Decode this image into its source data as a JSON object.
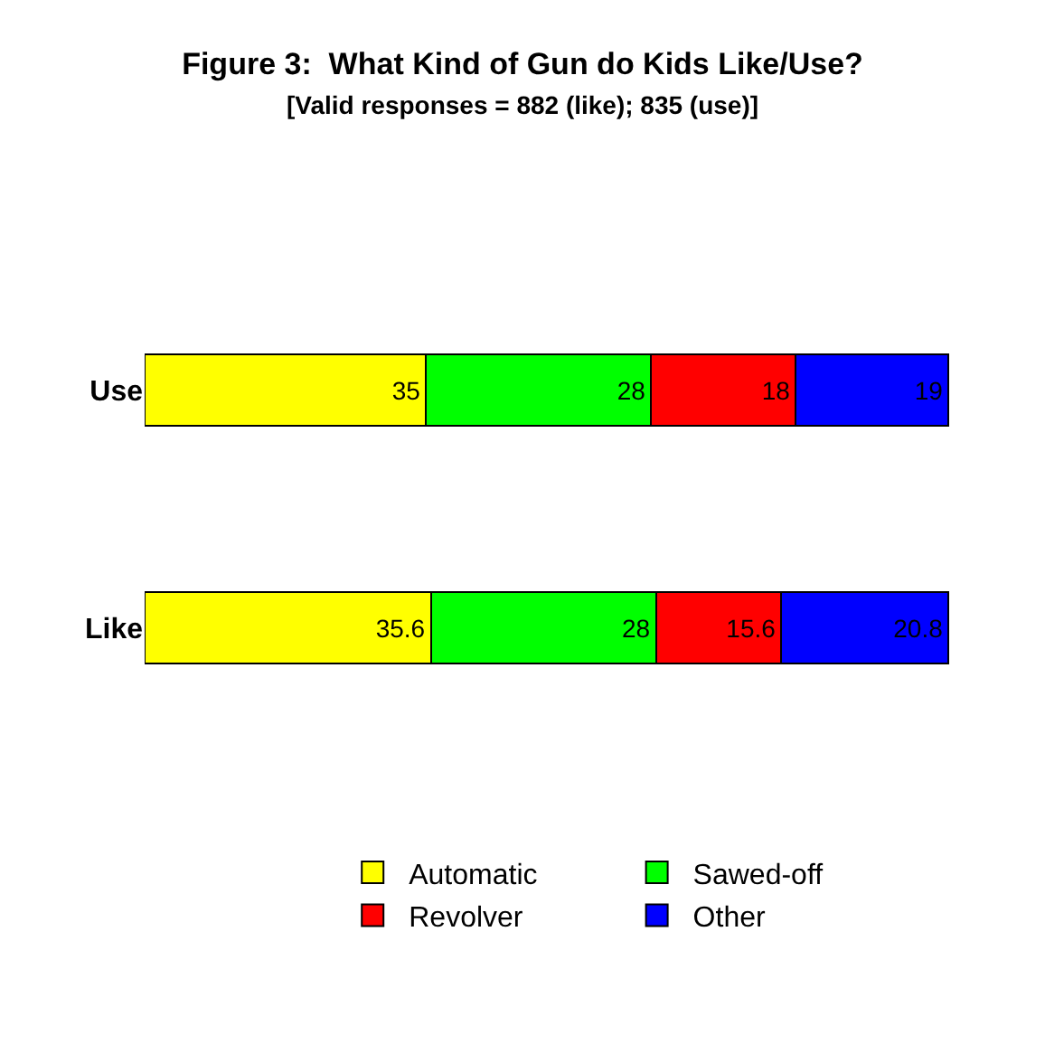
{
  "chart_data": {
    "type": "bar",
    "title": "Figure 3:  What Kind of Gun do Kids Like/Use?",
    "subtitle": "[Valid responses = 882 (like); 835 (use)]",
    "orientation": "horizontal",
    "stacked": true,
    "data_labels": true,
    "legend": "bottom",
    "categories": [
      "Use",
      "Like"
    ],
    "series": [
      {
        "name": "Automatic",
        "color": "#ffff00",
        "values": [
          35,
          35.6
        ]
      },
      {
        "name": "Sawed-off",
        "color": "#00ff00",
        "values": [
          28,
          28
        ]
      },
      {
        "name": "Revolver",
        "color": "#ff0000",
        "values": [
          18,
          15.6
        ]
      },
      {
        "name": "Other",
        "color": "#0000ff",
        "values": [
          19,
          20.8
        ]
      }
    ]
  }
}
